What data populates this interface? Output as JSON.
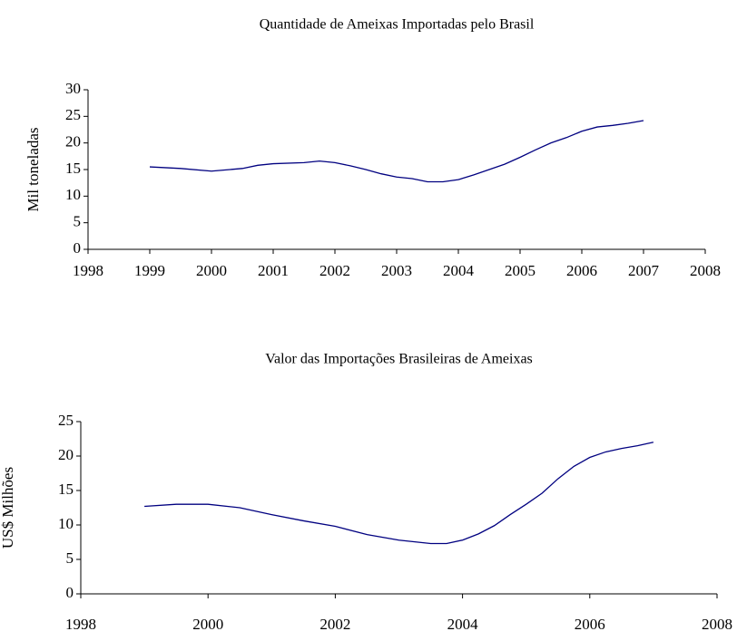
{
  "chart_data": [
    {
      "type": "line",
      "title": "Quantidade de Ameixas Importadas pelo Brasil",
      "y_label": "Mil toneladas",
      "x": [
        1999,
        1999.5,
        2000,
        2000.5,
        2000.75,
        2001,
        2001.5,
        2001.75,
        2002,
        2002.25,
        2002.5,
        2002.75,
        2003,
        2003.25,
        2003.5,
        2003.75,
        2004,
        2004.25,
        2004.5,
        2004.75,
        2005,
        2005.25,
        2005.5,
        2005.75,
        2006,
        2006.25,
        2006.5,
        2006.75,
        2007
      ],
      "series": [
        {
          "color": "#000080",
          "values": [
            15.5,
            15.2,
            14.7,
            15.2,
            15.8,
            16.1,
            16.3,
            16.6,
            16.3,
            15.7,
            15.0,
            14.2,
            13.6,
            13.3,
            12.7,
            12.7,
            13.1,
            14.0,
            15.0,
            16.0,
            17.3,
            18.7,
            20.0,
            21.0,
            22.2,
            23.0,
            23.3,
            23.7,
            24.2
          ]
        }
      ],
      "xlim": [
        1998,
        2008
      ],
      "xticks": [
        1998,
        1999,
        2000,
        2001,
        2002,
        2003,
        2004,
        2005,
        2006,
        2007,
        2008
      ],
      "ylim": [
        0,
        30
      ],
      "yticks": [
        0,
        5,
        10,
        15,
        20,
        25,
        30
      ],
      "grid": false
    },
    {
      "type": "line",
      "title": "Valor das Importações Brasileiras de Ameixas",
      "y_label": "US$ Milhões",
      "x": [
        1999,
        1999.5,
        2000,
        2000.5,
        2001,
        2001.5,
        2002,
        2002.5,
        2003,
        2003.5,
        2003.75,
        2004,
        2004.25,
        2004.5,
        2004.75,
        2005,
        2005.25,
        2005.5,
        2005.75,
        2006,
        2006.25,
        2006.5,
        2006.75,
        2007
      ],
      "series": [
        {
          "color": "#000080",
          "values": [
            12.7,
            13.0,
            13.0,
            12.5,
            11.5,
            10.6,
            9.8,
            8.6,
            7.8,
            7.3,
            7.3,
            7.8,
            8.7,
            9.9,
            11.5,
            13.0,
            14.6,
            16.7,
            18.5,
            19.8,
            20.6,
            21.1,
            21.5,
            22.0
          ]
        }
      ],
      "xlim": [
        1998,
        2008
      ],
      "xticks": [
        1998,
        2000,
        2002,
        2004,
        2006,
        2008
      ],
      "ylim": [
        0,
        25
      ],
      "yticks": [
        0,
        5,
        10,
        15,
        20,
        25
      ],
      "grid": false
    }
  ]
}
